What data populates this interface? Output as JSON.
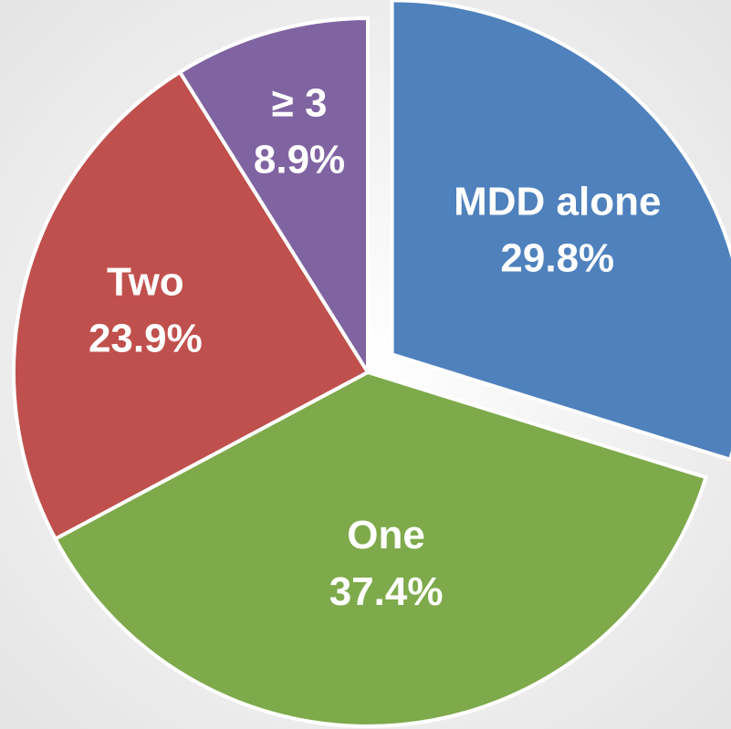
{
  "chart_data": {
    "type": "pie",
    "categories": [
      "MDD alone",
      "One",
      "Two",
      "≥ 3"
    ],
    "values": [
      29.8,
      37.4,
      23.9,
      8.9
    ],
    "value_labels": [
      "29.8%",
      "37.4%",
      "23.9%",
      "8.9%"
    ],
    "colors": [
      "#4f81bd",
      "#7eaa4b",
      "#c0504d",
      "#8064a2"
    ]
  }
}
